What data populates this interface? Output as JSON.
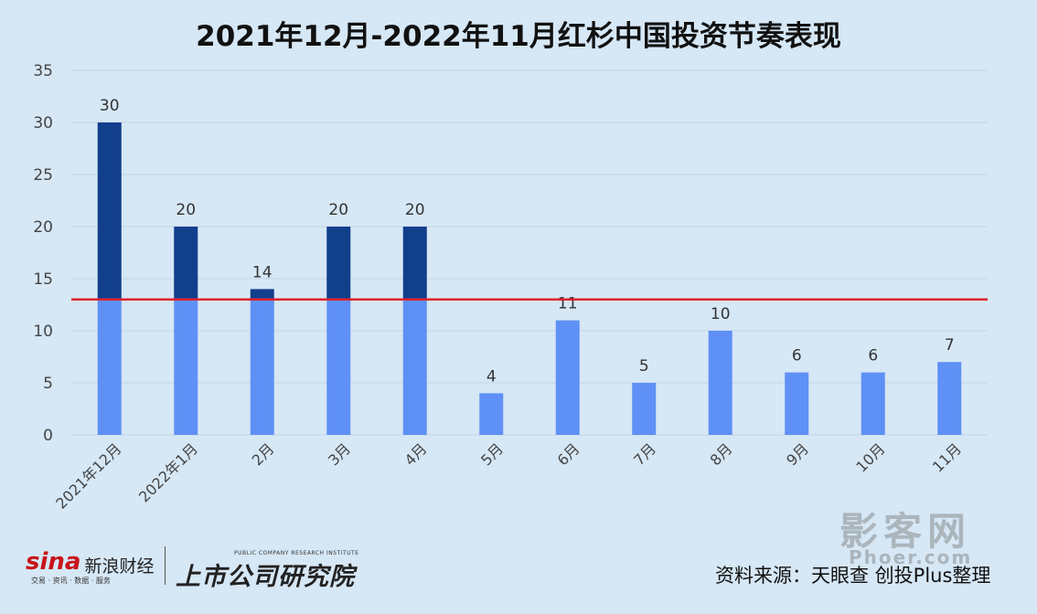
{
  "title": "2021年12月-2022年11月红杉中国投资节奏表现",
  "source": "资料来源：天眼查 创投Plus整理",
  "watermark": {
    "main": "影客网",
    "sub": "Phoer.com"
  },
  "logos": {
    "sina_word": "sina",
    "sina_cn": "新浪财经",
    "sina_sub": "交易 · 资讯 · 数据 · 服务",
    "inst_en": "PUBLIC COMPANY RESEARCH INSTITUTE",
    "inst_cn": "上市公司研究院"
  },
  "chart_data": {
    "type": "bar",
    "title": "2021年12月-2022年11月红杉中国投资节奏表现",
    "categories": [
      "2021年12月",
      "2022年1月",
      "2月",
      "3月",
      "4月",
      "5月",
      "6月",
      "7月",
      "8月",
      "9月",
      "10月",
      "11月"
    ],
    "values": [
      30,
      20,
      14,
      20,
      20,
      4,
      11,
      5,
      10,
      6,
      6,
      7
    ],
    "ylim": [
      0,
      35
    ],
    "yticks": [
      0,
      5,
      10,
      15,
      20,
      25,
      30,
      35
    ],
    "reference_line": 13,
    "grid": true,
    "colors": {
      "below": "#5f90f5",
      "above": "#123f8c",
      "reference": "#e0232d",
      "grid": "#c4d6e6"
    }
  }
}
